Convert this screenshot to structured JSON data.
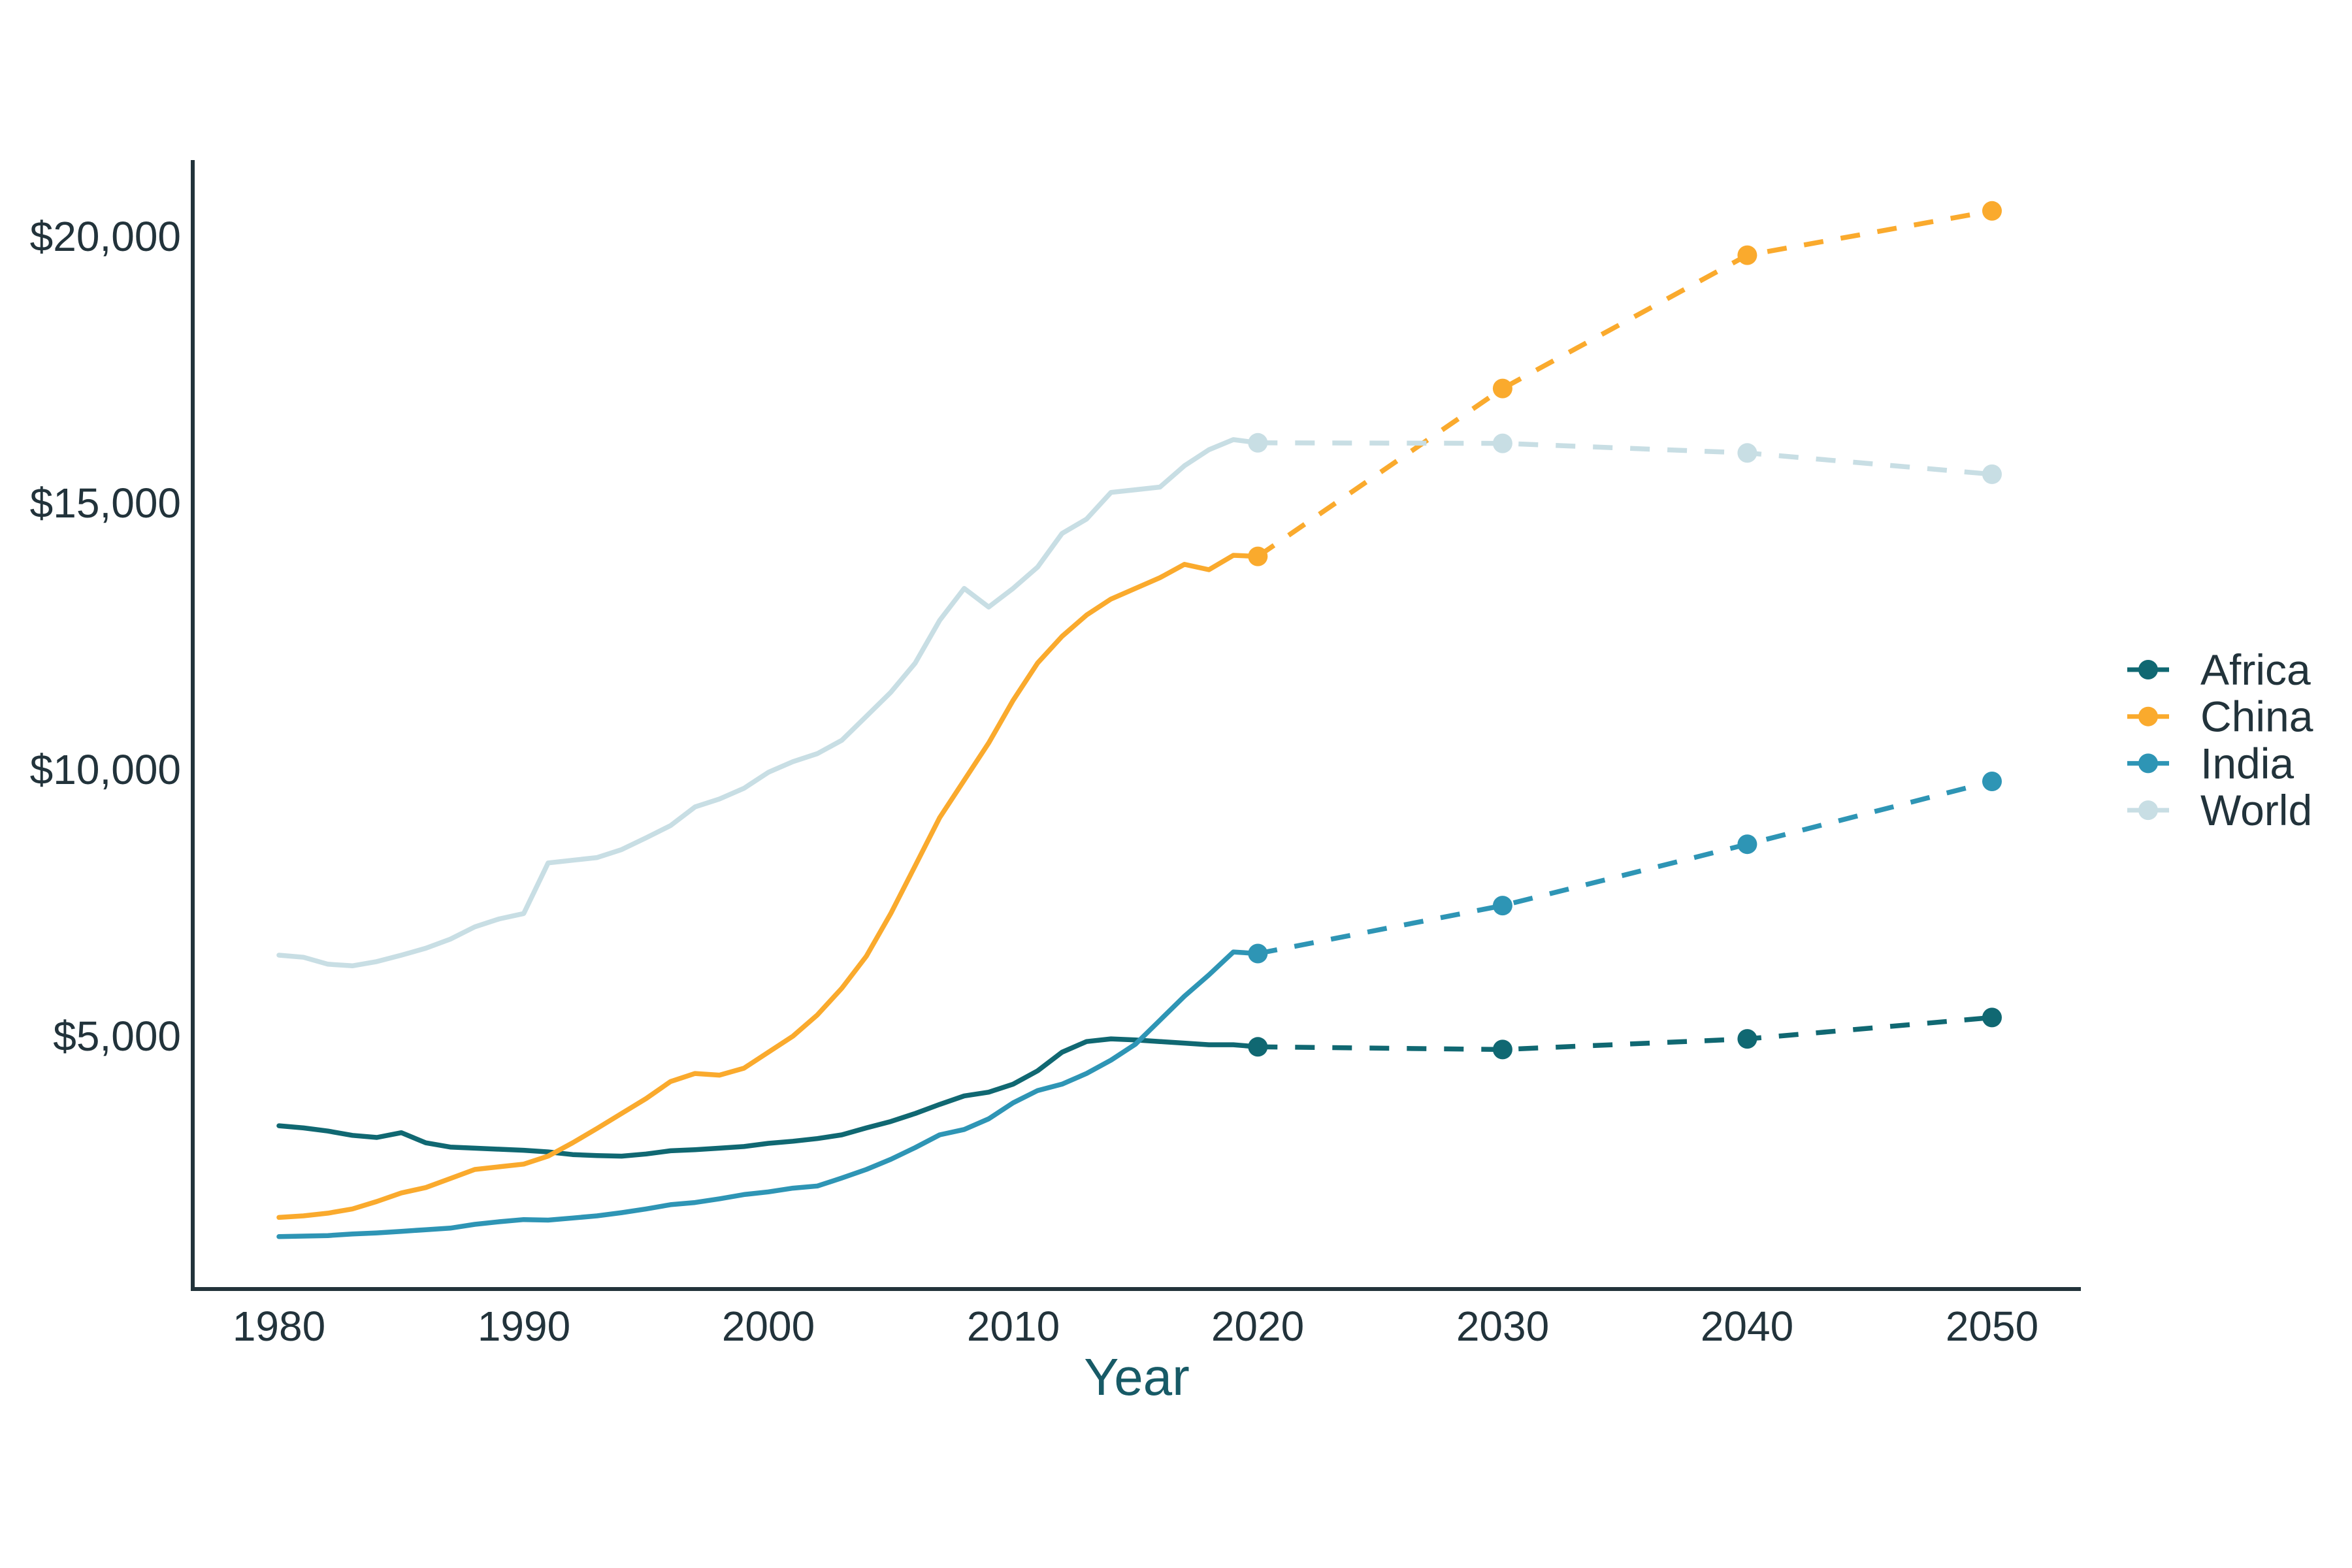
{
  "chart_data": {
    "type": "line",
    "title": "",
    "xlabel": "Year",
    "ylabel": "",
    "grid": false,
    "legend_position": "right",
    "xlim": [
      1976.5,
      2053.5
    ],
    "ylim": [
      250,
      21400
    ],
    "x_ticks": [
      "1980",
      "1990",
      "2000",
      "2010",
      "2020",
      "2030",
      "2040",
      "2050"
    ],
    "y_ticks": [
      {
        "value": 5000,
        "label": "$5,000"
      },
      {
        "value": 10000,
        "label": "$10,000"
      },
      {
        "value": 15000,
        "label": "$15,000"
      },
      {
        "value": 20000,
        "label": "$20,000"
      }
    ],
    "colors": {
      "africa": "#106872",
      "china": "#faaa2d",
      "india": "#2e95b5",
      "world": "#c8dee4",
      "axis": "#22333b",
      "tick_text": "#22333b",
      "xlabel_text": "#175a66"
    },
    "series": [
      {
        "name": "Africa",
        "color": "#106872",
        "historical": {
          "start_year": 1980,
          "values": [
            3320,
            3280,
            3220,
            3140,
            3100,
            3190,
            3000,
            2920,
            2900,
            2880,
            2860,
            2830,
            2780,
            2760,
            2750,
            2790,
            2850,
            2870,
            2900,
            2930,
            2990,
            3030,
            3080,
            3150,
            3280,
            3400,
            3550,
            3720,
            3880,
            3950,
            4100,
            4350,
            4700,
            4900,
            4950,
            4930,
            4900,
            4870,
            4840,
            4840,
            4800
          ]
        },
        "projection": {
          "years": [
            2020,
            2030,
            2040,
            2050
          ],
          "values": [
            4800,
            4750,
            4950,
            5350
          ]
        }
      },
      {
        "name": "China",
        "color": "#faaa2d",
        "historical": {
          "start_year": 1980,
          "values": [
            1600,
            1630,
            1680,
            1760,
            1900,
            2060,
            2160,
            2330,
            2500,
            2550,
            2600,
            2750,
            3000,
            3270,
            3550,
            3830,
            4150,
            4300,
            4270,
            4400,
            4700,
            5000,
            5400,
            5900,
            6500,
            7300,
            8200,
            9100,
            9800,
            10500,
            11300,
            12000,
            12500,
            12900,
            13200,
            13400,
            13600,
            13850,
            13750,
            14020,
            14000
          ]
        },
        "projection": {
          "years": [
            2020,
            2030,
            2040,
            2050
          ],
          "values": [
            14000,
            17150,
            19650,
            20480
          ]
        }
      },
      {
        "name": "India",
        "color": "#2e95b5",
        "historical": {
          "start_year": 1980,
          "values": [
            1240,
            1250,
            1260,
            1290,
            1310,
            1340,
            1370,
            1400,
            1470,
            1520,
            1560,
            1550,
            1590,
            1630,
            1690,
            1760,
            1840,
            1880,
            1950,
            2030,
            2080,
            2150,
            2190,
            2340,
            2500,
            2690,
            2910,
            3150,
            3250,
            3450,
            3750,
            3980,
            4100,
            4300,
            4550,
            4850,
            5300,
            5750,
            6150,
            6580,
            6550
          ]
        },
        "projection": {
          "years": [
            2020,
            2030,
            2040,
            2050
          ],
          "values": [
            6550,
            7450,
            8600,
            9780
          ]
        }
      },
      {
        "name": "World",
        "color": "#c8dee4",
        "historical": {
          "start_year": 1980,
          "values": [
            6520,
            6480,
            6350,
            6320,
            6400,
            6520,
            6650,
            6820,
            7050,
            7200,
            7300,
            8250,
            8300,
            8350,
            8500,
            8720,
            8950,
            9300,
            9450,
            9650,
            9950,
            10150,
            10300,
            10550,
            11000,
            11450,
            12000,
            12800,
            13400,
            13050,
            13400,
            13800,
            14430,
            14700,
            15200,
            15250,
            15300,
            15700,
            16000,
            16190,
            16130
          ]
        },
        "projection": {
          "years": [
            2020,
            2030,
            2040,
            2050
          ],
          "values": [
            16130,
            16120,
            15940,
            15540
          ]
        }
      }
    ]
  }
}
